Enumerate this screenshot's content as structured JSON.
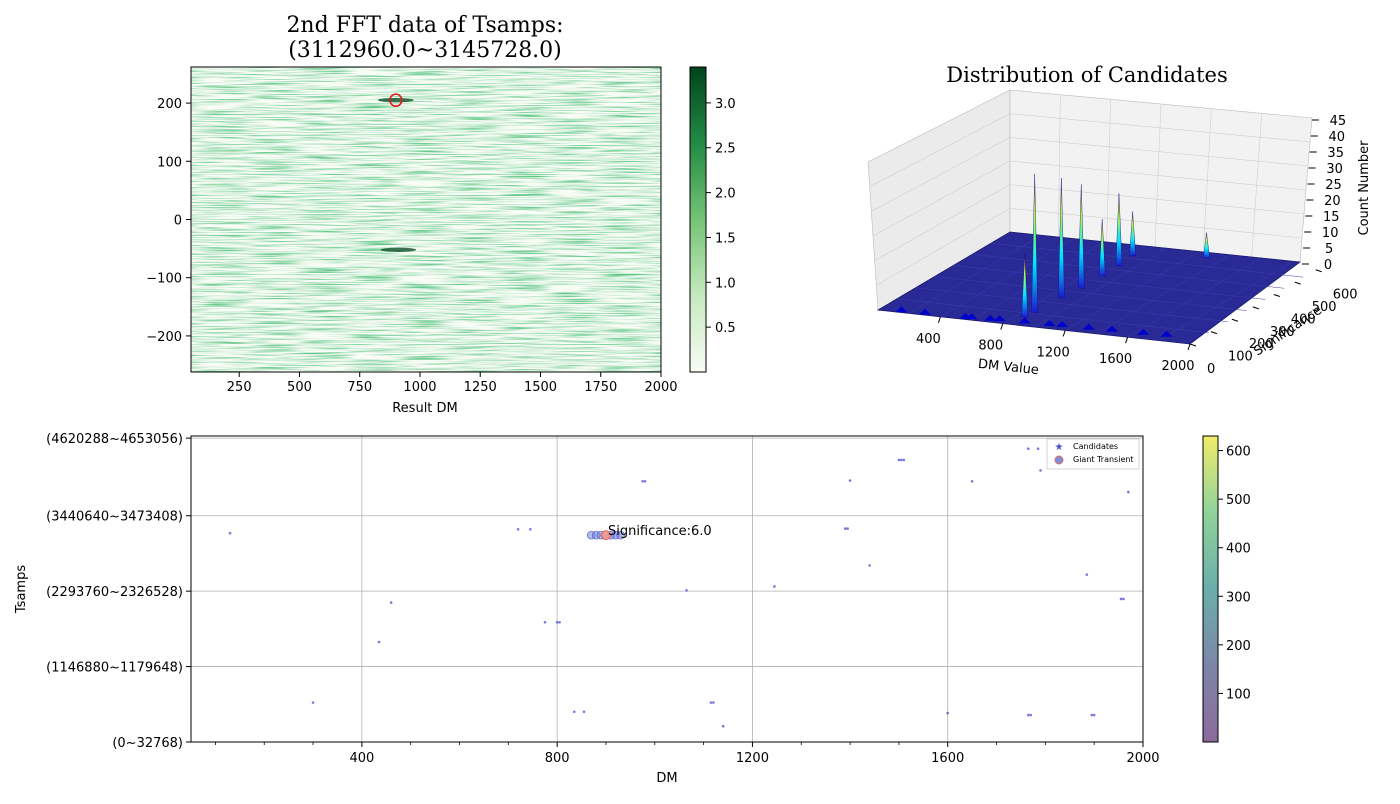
{
  "colors": {
    "heatmap_low": "#f7fcf5",
    "heatmap_high": "#00441b",
    "marker_circle": "#e41a1c",
    "candidate_star": "#4b4bd6",
    "floor": "#1f1f8f"
  },
  "chart_data": [
    {
      "type": "heatmap",
      "title_line1": "2nd FFT data of Tsamps:",
      "title_line2": "(3112960.0~3145728.0)",
      "xlabel": "Result DM",
      "ylabel": "",
      "xlim": [
        50,
        2000
      ],
      "ylim": [
        -262,
        262
      ],
      "xticks": [
        "250",
        "500",
        "750",
        "1000",
        "1250",
        "1500",
        "1750",
        "2000"
      ],
      "xtick_values": [
        250,
        500,
        750,
        1000,
        1250,
        1500,
        1750,
        2000
      ],
      "yticks": [
        "200",
        "100",
        "0",
        "−100",
        "−200"
      ],
      "ytick_values": [
        200,
        100,
        0,
        -100,
        -200
      ],
      "colormap": "Greens",
      "colorbar_ticks": [
        "3.0",
        "2.5",
        "2.0",
        "1.5",
        "1.0",
        "0.5"
      ],
      "colorbar_values": [
        3.0,
        2.5,
        2.0,
        1.5,
        1.0,
        0.5
      ],
      "colorbar_range": [
        0.0,
        3.4
      ],
      "marked_point": {
        "x": 900,
        "y": 205
      },
      "features": [
        {
          "x": 910,
          "y": -52,
          "value": 3.2
        },
        {
          "x": 900,
          "y": 205,
          "value": 3.4
        }
      ]
    },
    {
      "type": "surface3d",
      "title": "Distribution of Candidates",
      "xlabel": "DM Value",
      "ylabel": "Significance",
      "zlabel": "Count Number",
      "xticks": [
        "400",
        "800",
        "1200",
        "1600",
        "2000"
      ],
      "yticks": [
        "0",
        "100",
        "200",
        "300",
        "400",
        "500",
        "600"
      ],
      "zticks": [
        "0",
        "5",
        "10",
        "15",
        "20",
        "25",
        "30",
        "35",
        "40",
        "45"
      ],
      "peaks": [
        {
          "dm": 880,
          "sig": 560,
          "count": 14
        },
        {
          "dm": 900,
          "sig": 480,
          "count": 23
        },
        {
          "dm": 900,
          "sig": 400,
          "count": 18
        },
        {
          "dm": 900,
          "sig": 300,
          "count": 33
        },
        {
          "dm": 880,
          "sig": 220,
          "count": 38
        },
        {
          "dm": 870,
          "sig": 100,
          "count": 44
        },
        {
          "dm": 860,
          "sig": 60,
          "count": 20
        },
        {
          "dm": 1300,
          "sig": 600,
          "count": 8
        }
      ]
    },
    {
      "type": "scatter",
      "xlabel": "DM",
      "ylabel": "Tsamps",
      "xlim": [
        50,
        2000
      ],
      "xticks": [
        "400",
        "800",
        "1200",
        "1600",
        "2000"
      ],
      "xtick_values": [
        400,
        800,
        1200,
        1600,
        2000
      ],
      "yticks": [
        "(4620288~4653056)",
        "(3440640~3473408)",
        "(2293760~2326528)",
        "(1146880~1179648)",
        "(0~32768)"
      ],
      "ytick_values": [
        4620288,
        3440640,
        2293760,
        1146880,
        0
      ],
      "ylim": [
        0,
        4653056
      ],
      "legend": [
        "Candidates",
        "Giant Transient"
      ],
      "annotation": "Significance:6.0",
      "annotation_point": {
        "x": 900,
        "y": 3145728
      },
      "colorbar_ticks": [
        "600",
        "500",
        "400",
        "300",
        "200",
        "100"
      ],
      "colorbar_values": [
        600,
        500,
        400,
        300,
        200,
        100
      ],
      "colorbar_range": [
        0,
        630
      ],
      "points": [
        {
          "x": 130,
          "y": 3175000
        },
        {
          "x": 300,
          "y": 600000
        },
        {
          "x": 435,
          "y": 1520000
        },
        {
          "x": 460,
          "y": 2120000
        },
        {
          "x": 720,
          "y": 3235000
        },
        {
          "x": 745,
          "y": 3235000
        },
        {
          "x": 775,
          "y": 1820000
        },
        {
          "x": 800,
          "y": 1820000
        },
        {
          "x": 805,
          "y": 1820000
        },
        {
          "x": 835,
          "y": 460000
        },
        {
          "x": 855,
          "y": 460000
        },
        {
          "x": 975,
          "y": 3965000
        },
        {
          "x": 980,
          "y": 3965000
        },
        {
          "x": 1065,
          "y": 2305000
        },
        {
          "x": 1115,
          "y": 600000
        },
        {
          "x": 1120,
          "y": 600000
        },
        {
          "x": 1140,
          "y": 240000
        },
        {
          "x": 1245,
          "y": 2365000
        },
        {
          "x": 1390,
          "y": 3245000
        },
        {
          "x": 1395,
          "y": 3245000
        },
        {
          "x": 1400,
          "y": 3975000
        },
        {
          "x": 1440,
          "y": 2685000
        },
        {
          "x": 1500,
          "y": 4290000
        },
        {
          "x": 1505,
          "y": 4290000
        },
        {
          "x": 1510,
          "y": 4290000
        },
        {
          "x": 1600,
          "y": 440000
        },
        {
          "x": 1650,
          "y": 3965000
        },
        {
          "x": 1765,
          "y": 4460000
        },
        {
          "x": 1765,
          "y": 410000
        },
        {
          "x": 1770,
          "y": 410000
        },
        {
          "x": 1785,
          "y": 4460000
        },
        {
          "x": 1790,
          "y": 4130000
        },
        {
          "x": 1885,
          "y": 2545000
        },
        {
          "x": 1895,
          "y": 410000
        },
        {
          "x": 1900,
          "y": 410000
        },
        {
          "x": 1955,
          "y": 2175000
        },
        {
          "x": 1960,
          "y": 2175000
        },
        {
          "x": 1970,
          "y": 3800000
        }
      ],
      "giant_cluster": [
        {
          "x": 870,
          "y": 3145728
        },
        {
          "x": 880,
          "y": 3145728
        },
        {
          "x": 890,
          "y": 3145728
        },
        {
          "x": 900,
          "y": 3145728
        },
        {
          "x": 910,
          "y": 3145728
        },
        {
          "x": 920,
          "y": 3145728
        },
        {
          "x": 930,
          "y": 3145728
        }
      ]
    }
  ]
}
